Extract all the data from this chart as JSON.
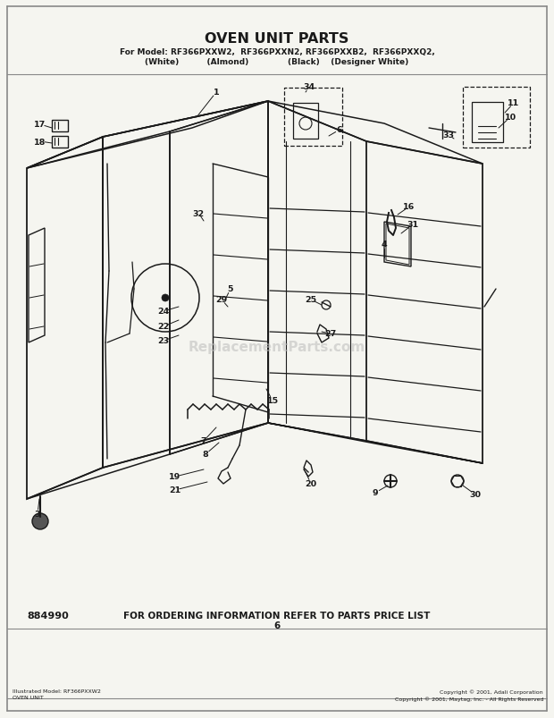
{
  "title": "OVEN UNIT PARTS",
  "subtitle1": "For Model: RF366PXXW2,  RF366PXXN2, RF366PXXB2,  RF366PXXQ2,",
  "subtitle2": "(White)          (Almond)              (Black)    (Designer White)",
  "bottom_center": "FOR ORDERING INFORMATION REFER TO PARTS PRICE LIST",
  "bottom_center2": "6",
  "bottom_left": "884990",
  "footer_left": "Illustrated Model: RF366PXXW2\nOVEN UNIT",
  "footer_right": "Copyright © 2001, Adali Corporation\nCopyright © 2001, Maytag, Inc. - All Rights Reserved",
  "bg_color": "#f5f5f0",
  "line_color": "#1a1a1a",
  "text_color": "#1a1a1a",
  "watermark": "ReplacementParts.com",
  "border_color": "#888888"
}
